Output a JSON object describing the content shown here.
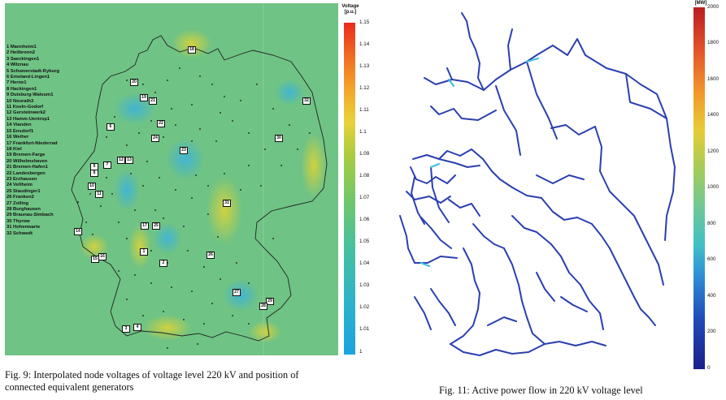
{
  "figure9": {
    "colorbar_title_line1": "Voltage",
    "colorbar_title_line2": "[p.u.]",
    "colorbar_ticks": [
      "1.15",
      "1.14",
      "1.13",
      "1.12",
      "1.11",
      "1.1",
      "1.09",
      "1.08",
      "1.07",
      "1.06",
      "1.05",
      "1.04",
      "1.03",
      "1.02",
      "1.01",
      "1"
    ],
    "legend": [
      "1 Mannheim1",
      "2 Heilbronn2",
      "3 Saeckingen1",
      "4 Witznau",
      "5 Schwoerstadt-Ryburg",
      "6 Emsland-Lingen1",
      "7 Herne1",
      "8 Hackingen1",
      "9 Duisburg-Walsum1",
      "10 Neurath3",
      "11 Koeln-Godorf",
      "12 Gersteinwerk2",
      "13 Hamm-Uentrop1",
      "14 Vianden",
      "15 Ensdorf1",
      "16 Weiher",
      "17 Frankfurt-Niederrad",
      "18 Kiel",
      "19 Bremen-Farge",
      "20 Wilhelmshaven",
      "21 Bremen-Hafen1",
      "22 Landesbergen",
      "23 Erzhausen",
      "24 Veltheim",
      "25 Staudinger1",
      "26 Franken2",
      "27 Zolling",
      "28 Burghausen",
      "29 Braunau-Simbach",
      "30 Thyrow",
      "31 Hohenwarte",
      "32 Schwedt"
    ],
    "markers": [
      "18",
      "20",
      "19",
      "21",
      "32",
      "22",
      "6",
      "24",
      "30",
      "23",
      "7",
      "12",
      "13",
      "9",
      "8",
      "10",
      "11",
      "31",
      "17",
      "25",
      "14",
      "1",
      "16",
      "15",
      "2",
      "26",
      "27",
      "29",
      "28",
      "3",
      "4"
    ],
    "caption_line1": "Fig. 9: Interpolated node voltages of voltage level 220 kV and position of",
    "caption_line2": "connected equivalent generators"
  },
  "figure11": {
    "colorbar_title": "[MW]",
    "colorbar_ticks": [
      "2000",
      "1800",
      "1600",
      "1400",
      "1200",
      "1000",
      "800",
      "600",
      "400",
      "200",
      "0"
    ],
    "caption": "Fig. 11: Active power flow in 220 kV voltage level"
  },
  "colors": {
    "map_background": "#6fc384",
    "line_blue": "#2b3fb0",
    "line_cyan": "#3fc0e0"
  }
}
